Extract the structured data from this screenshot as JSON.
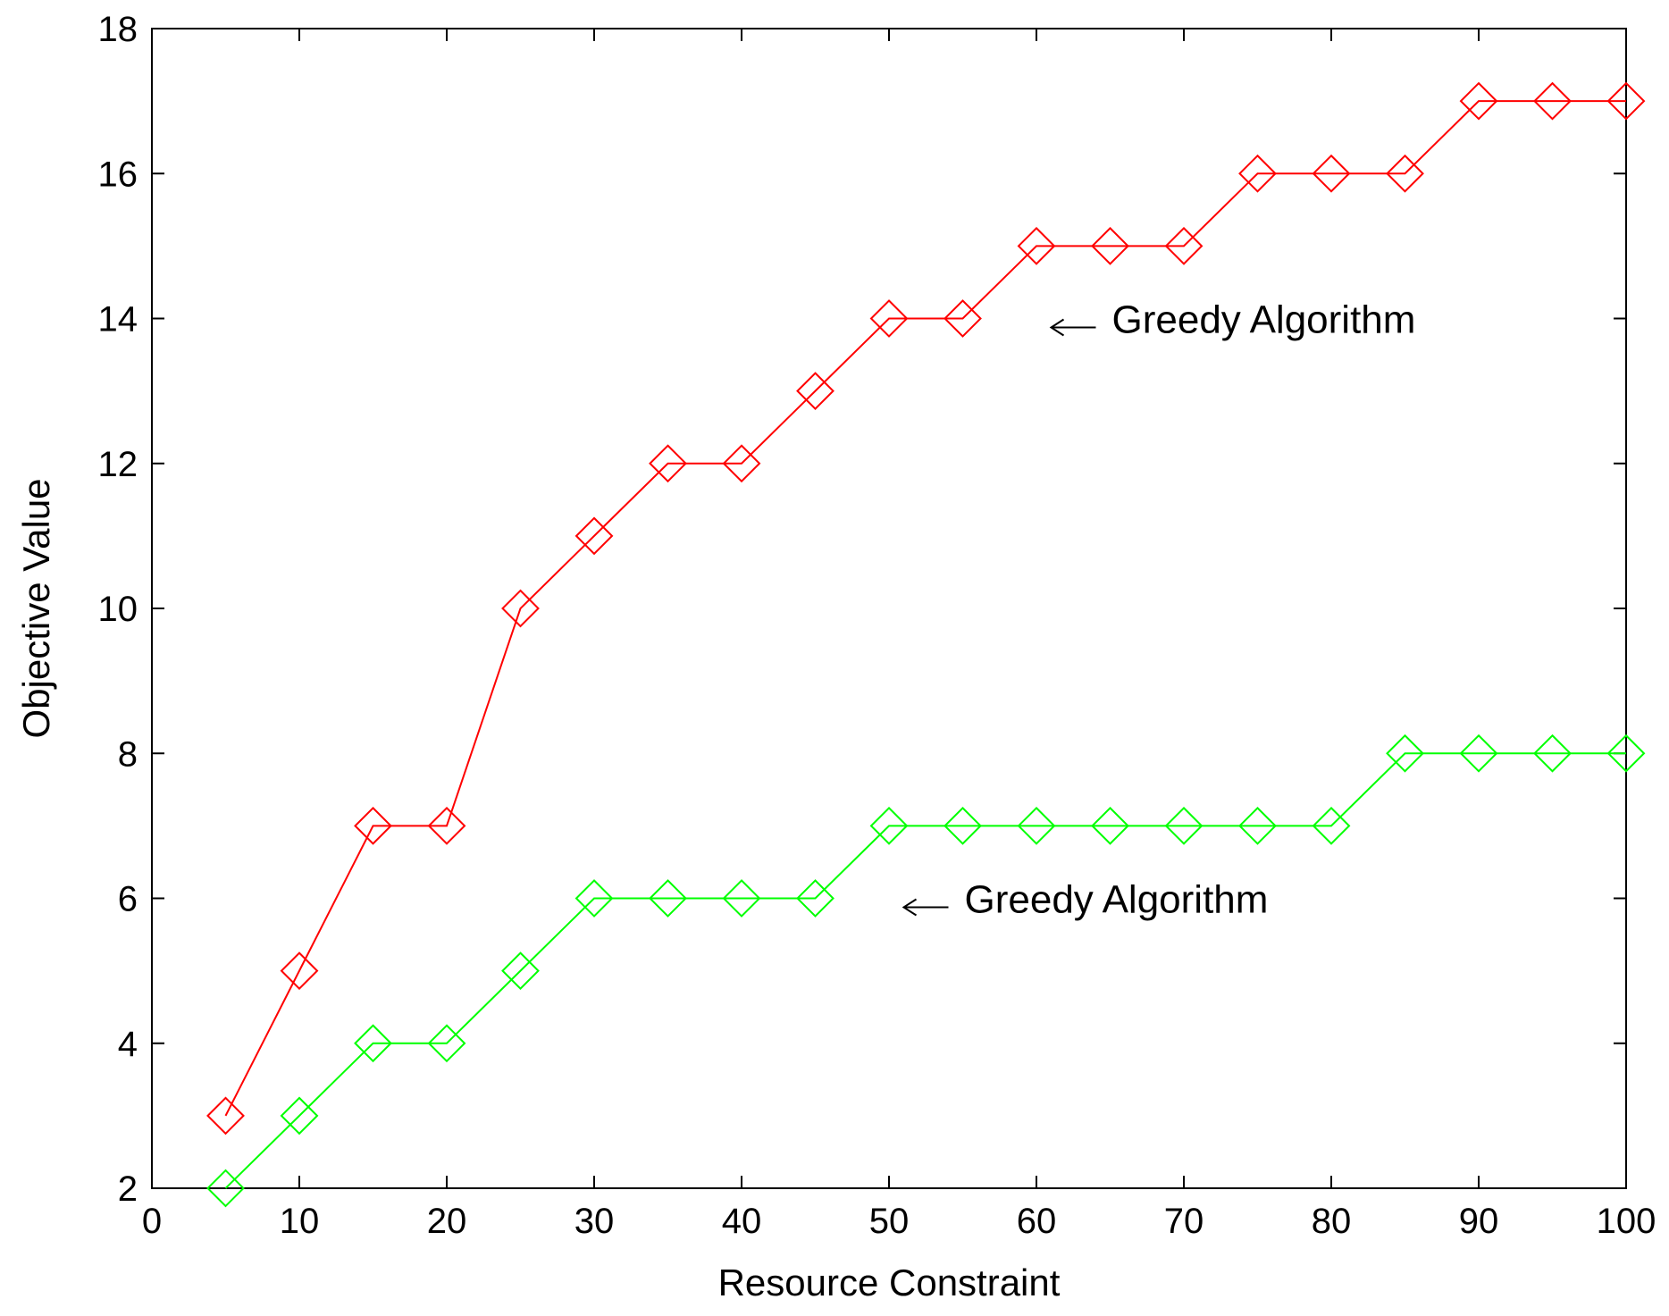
{
  "chart_data": {
    "type": "line",
    "title": "",
    "xlabel": "Resource Constraint",
    "ylabel": "Objective Value",
    "xlim": [
      0,
      100
    ],
    "ylim": [
      2,
      18
    ],
    "xticks": [
      0,
      10,
      20,
      30,
      40,
      50,
      60,
      70,
      80,
      90,
      100
    ],
    "yticks": [
      2,
      4,
      6,
      8,
      10,
      12,
      14,
      16,
      18
    ],
    "grid": false,
    "marker": "diamond-open",
    "x": [
      5,
      10,
      15,
      20,
      25,
      30,
      35,
      40,
      45,
      50,
      55,
      60,
      65,
      70,
      75,
      80,
      85,
      90,
      95,
      100
    ],
    "series": [
      {
        "color": "#ff0000",
        "values": [
          3,
          5,
          7,
          7,
          10,
          11,
          12,
          12,
          13,
          14,
          14,
          15,
          15,
          15,
          16,
          16,
          16,
          17,
          17,
          17
        ]
      },
      {
        "color": "#00ff00",
        "values": [
          2,
          3,
          4,
          4,
          5,
          6,
          6,
          6,
          6,
          7,
          7,
          7,
          7,
          7,
          7,
          7,
          8,
          8,
          8,
          8
        ]
      }
    ],
    "annotations": [
      {
        "text": "Greedy Algorithm",
        "x": 61,
        "y": 14
      },
      {
        "text": "Greedy Algorithm",
        "x": 51,
        "y": 6
      }
    ]
  }
}
